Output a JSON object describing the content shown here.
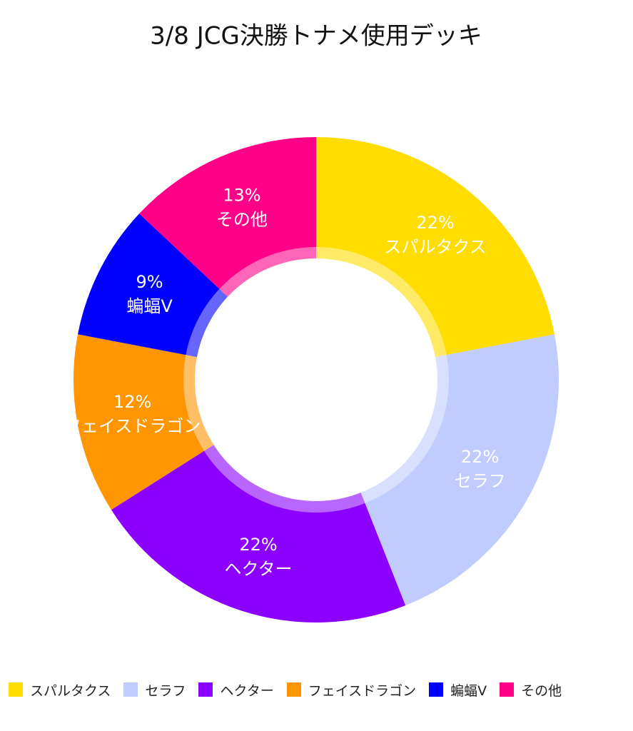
{
  "chart_data": {
    "type": "donut",
    "title": "3/8 JCG決勝トナメ使用デッキ",
    "categories": [
      "スパルタクス",
      "セラフ",
      "ヘクター",
      "フェイスドラゴン",
      "蝙蝠V",
      "その他"
    ],
    "values": [
      22,
      22,
      22,
      12,
      9,
      13
    ],
    "value_labels": [
      "22%",
      "22%",
      "22%",
      "12%",
      "9%",
      "13%"
    ],
    "colors": [
      "#FFDD00",
      "#C0CCFF",
      "#8B00FF",
      "#FF9500",
      "#0000FF",
      "#FF0088"
    ],
    "legend": "bottom"
  }
}
